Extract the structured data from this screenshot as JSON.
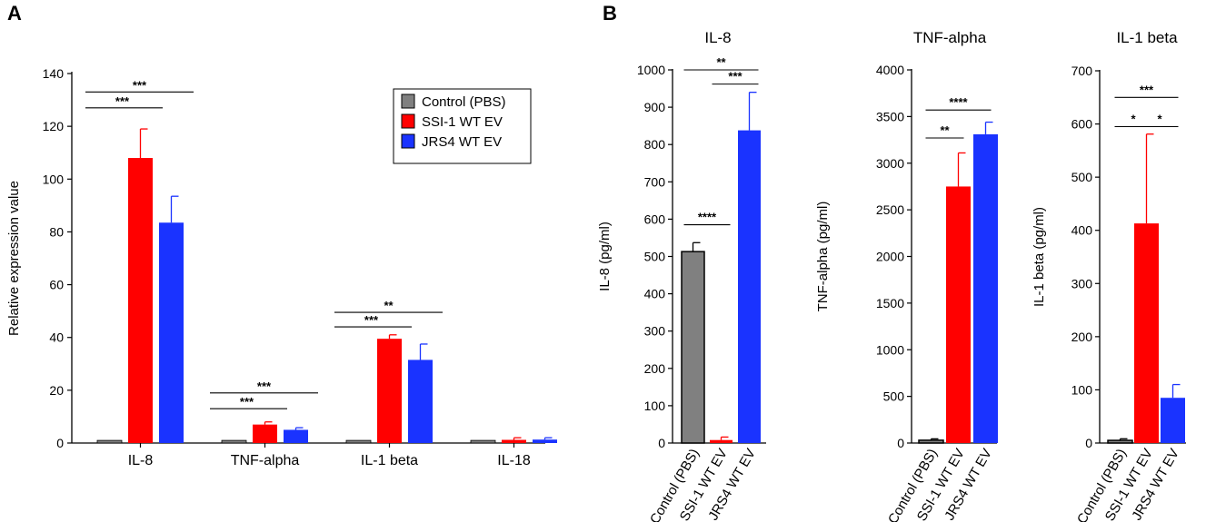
{
  "panel_a_letter": "A",
  "panel_b_letter": "B",
  "colors": {
    "control": "#808080",
    "ssi": "#ff0000",
    "jrs": "#1a33ff",
    "axis": "#000000"
  },
  "chart_data": [
    {
      "id": "A",
      "type": "bar",
      "title": "",
      "xlabel": "",
      "ylabel": "Relative expression value",
      "ylim": [
        0,
        140
      ],
      "yticks": [
        0,
        20,
        40,
        60,
        80,
        100,
        120,
        140
      ],
      "categories": [
        "IL-8",
        "TNF-alpha",
        "IL-1 beta",
        "IL-18"
      ],
      "series": [
        {
          "name": "Control (PBS)",
          "color": "#808080",
          "values": [
            1,
            1,
            1,
            1
          ],
          "errors": [
            0,
            0,
            0,
            0
          ]
        },
        {
          "name": "SSI-1 WT EV",
          "color": "#ff0000",
          "values": [
            108,
            7,
            39.5,
            1.2
          ],
          "errors": [
            11,
            1,
            1.5,
            0.8
          ]
        },
        {
          "name": "JRS4 WT EV",
          "color": "#1a33ff",
          "values": [
            83.5,
            5,
            31.5,
            1.3
          ],
          "errors": [
            10,
            0.8,
            6,
            0.7
          ]
        }
      ],
      "legend": {
        "position": "top-right",
        "entries": [
          "Control (PBS)",
          "SSI-1 WT EV",
          "JRS4 WT EV"
        ]
      },
      "annotations": [
        {
          "category": 0,
          "from": 0,
          "to": 1,
          "y": 127,
          "label": "***"
        },
        {
          "category": 0,
          "from": 0,
          "to": 2,
          "y": 133,
          "label": "***"
        },
        {
          "category": 1,
          "from": 0,
          "to": 1,
          "y": 13,
          "label": "***"
        },
        {
          "category": 1,
          "from": 0,
          "to": 2,
          "y": 19,
          "label": "***"
        },
        {
          "category": 2,
          "from": 0,
          "to": 1,
          "y": 44,
          "label": "***"
        },
        {
          "category": 2,
          "from": 0,
          "to": 2,
          "y": 49.5,
          "label": "**"
        }
      ]
    },
    {
      "id": "B1",
      "type": "bar",
      "title": "IL-8",
      "xlabel": "",
      "ylabel": "IL-8 (pg/ml)",
      "ylim": [
        0,
        1000
      ],
      "yticks": [
        0,
        100,
        200,
        300,
        400,
        500,
        600,
        700,
        800,
        900,
        1000
      ],
      "categories": [
        "Control (PBS)",
        "SSI-1 WT EV",
        "JRS4 WT EV"
      ],
      "colors": [
        "#808080",
        "#ff0000",
        "#1a33ff"
      ],
      "values": [
        513,
        8,
        838
      ],
      "errors": [
        24,
        8,
        102
      ],
      "annotations": [
        {
          "from": 0,
          "to": 1,
          "y": 585,
          "label": "****"
        },
        {
          "from": 1,
          "to": 2,
          "y": 962,
          "label": "***"
        },
        {
          "from": 0,
          "to": 2,
          "y": 1000,
          "label": "**"
        }
      ]
    },
    {
      "id": "B2",
      "type": "bar",
      "title": "TNF-alpha",
      "xlabel": "",
      "ylabel": "TNF-alpha (pg/ml)",
      "ylim": [
        0,
        4000
      ],
      "yticks": [
        0,
        500,
        1000,
        1500,
        2000,
        2500,
        3000,
        3500,
        4000
      ],
      "categories": [
        "Control (PBS)",
        "SSI-1 WT EV",
        "JRS4 WT EV"
      ],
      "colors": [
        "#808080",
        "#ff0000",
        "#1a33ff"
      ],
      "values": [
        30,
        2750,
        3310
      ],
      "errors": [
        15,
        360,
        130
      ],
      "annotations": [
        {
          "from": 0,
          "to": 1,
          "y": 3270,
          "label": "**"
        },
        {
          "from": 0,
          "to": 2,
          "y": 3570,
          "label": "****"
        }
      ]
    },
    {
      "id": "B3",
      "type": "bar",
      "title": "IL-1 beta",
      "xlabel": "",
      "ylabel": "IL-1 beta (pg/ml)",
      "ylim": [
        0,
        700
      ],
      "yticks": [
        0,
        100,
        200,
        300,
        400,
        500,
        600,
        700
      ],
      "categories": [
        "Control (PBS)",
        "SSI-1 WT EV",
        "JRS4 WT EV"
      ],
      "colors": [
        "#808080",
        "#ff0000",
        "#1a33ff"
      ],
      "values": [
        5,
        413,
        85
      ],
      "errors": [
        3,
        168,
        25
      ],
      "annotations": [
        {
          "from": 0,
          "to": 1,
          "y": 595,
          "label": "*"
        },
        {
          "from": 1,
          "to": 2,
          "y": 595,
          "label": "*"
        },
        {
          "from": 0,
          "to": 2,
          "y": 650,
          "label": "***"
        }
      ]
    }
  ]
}
